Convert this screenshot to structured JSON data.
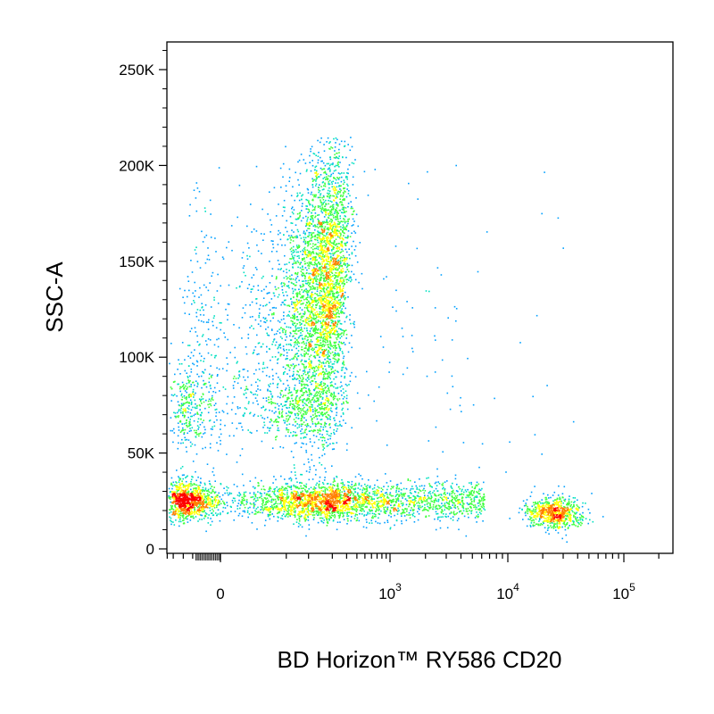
{
  "chart_data": {
    "type": "scatter",
    "style": "density-pseudocolor",
    "xlabel": "BD Horizon™ RY586 CD20",
    "ylabel": "SSC-A",
    "x_scale": "biexponential",
    "y_scale": "linear",
    "ylim": [
      0,
      262144
    ],
    "grid": false,
    "legend": "none",
    "density_colors": [
      "#0000ff",
      "#00a0ff",
      "#00e0c0",
      "#40ff40",
      "#ffff00",
      "#ff8000",
      "#ff0000"
    ],
    "y_ticks": [
      {
        "value": 0,
        "label": "0"
      },
      {
        "value": 50000,
        "label": "50K"
      },
      {
        "value": 100000,
        "label": "100K"
      },
      {
        "value": 150000,
        "label": "150K"
      },
      {
        "value": 200000,
        "label": "200K"
      },
      {
        "value": 250000,
        "label": "250K"
      }
    ],
    "x_ticks": [
      {
        "value": 0,
        "label": "0",
        "base": "0",
        "exp": ""
      },
      {
        "value": 1000,
        "label": "10^3",
        "base": "10",
        "exp": "3"
      },
      {
        "value": 10000,
        "label": "10^4",
        "base": "10",
        "exp": "4"
      },
      {
        "value": 100000,
        "label": "10^5",
        "base": "10",
        "exp": "5"
      }
    ],
    "populations": [
      {
        "name": "",
        "x_center": 20,
        "y_center": 25000,
        "x_spread": 120,
        "y_spread": 5000,
        "events": 2200,
        "peak_density": "high"
      },
      {
        "name": "",
        "x_center": 140,
        "y_center": 135000,
        "x_spread": 80,
        "y_spread": 35000,
        "events": 3800,
        "peak_density": "high"
      },
      {
        "name": "",
        "x_center": 40,
        "y_center": 75000,
        "x_spread": 100,
        "y_spread": 12000,
        "events": 900,
        "peak_density": "medium"
      },
      {
        "name": "",
        "x_center": 1500,
        "y_center": 25000,
        "x_spread": 0.35,
        "y_spread": 5000,
        "events": 1300,
        "peak_density": "low"
      },
      {
        "name": "",
        "x_center": 25000,
        "y_center": 19000,
        "x_spread": 0.12,
        "y_spread": 4000,
        "events": 700,
        "peak_density": "medium"
      },
      {
        "name": "",
        "x_center": 2000,
        "y_center": 100000,
        "x_spread": 0.6,
        "y_spread": 60000,
        "events": 120,
        "peak_density": "sparse"
      }
    ]
  }
}
